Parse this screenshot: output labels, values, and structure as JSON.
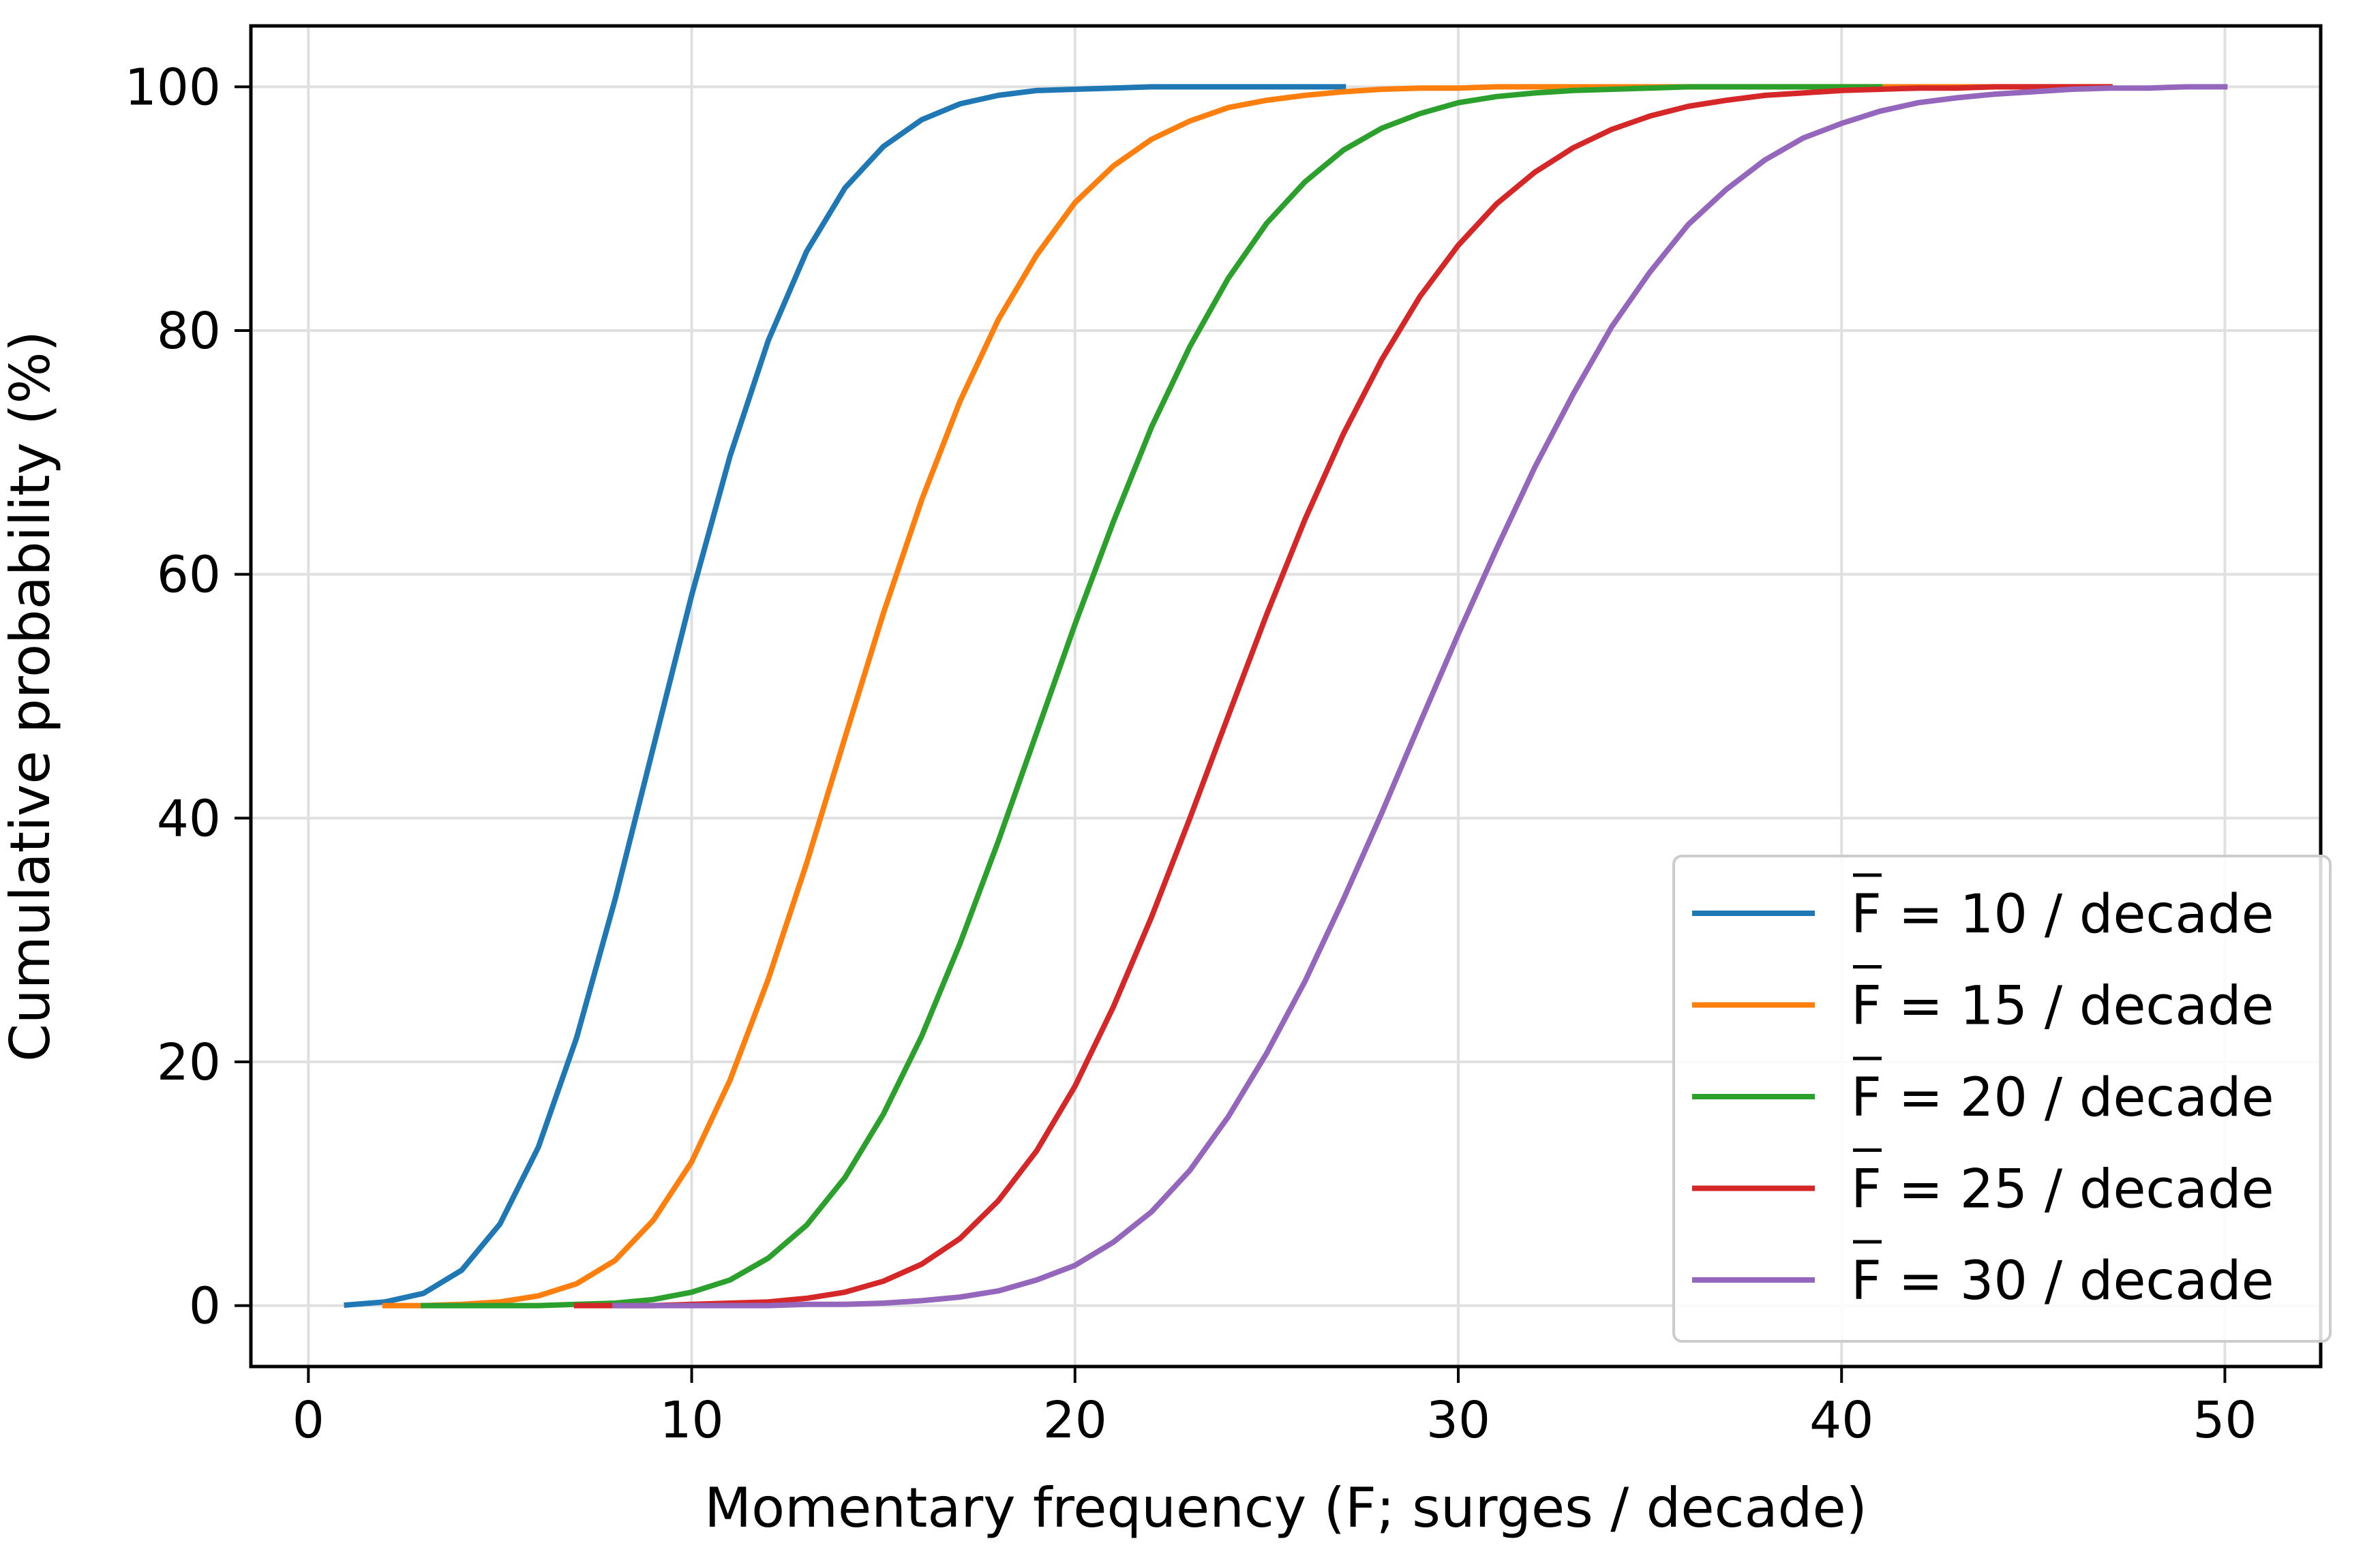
{
  "chart_data": {
    "type": "line",
    "title": "",
    "xlabel": "Momentary frequency (F; surges / decade)",
    "ylabel": "Cumulative probability (%)",
    "xlim": [
      -1.5,
      52.5
    ],
    "ylim": [
      -5,
      105
    ],
    "xticks": [
      0,
      10,
      20,
      30,
      40,
      50
    ],
    "yticks": [
      0,
      20,
      40,
      60,
      80,
      100
    ],
    "grid": true,
    "legend_position": "lower right",
    "series": [
      {
        "name": "F = 10 / decade",
        "color": "#1f77b4",
        "x": [
          1,
          2,
          3,
          4,
          5,
          6,
          7,
          8,
          9,
          10,
          11,
          12,
          13,
          14,
          15,
          16,
          17,
          18,
          19,
          20,
          21,
          22,
          23,
          24,
          25,
          26,
          27
        ],
        "y": [
          0.05,
          0.3,
          1.0,
          2.9,
          6.7,
          13.0,
          22.0,
          33.3,
          45.8,
          58.3,
          69.7,
          79.2,
          86.5,
          91.7,
          95.1,
          97.3,
          98.6,
          99.3,
          99.7,
          99.8,
          99.9,
          100,
          100,
          100,
          100,
          100,
          100
        ]
      },
      {
        "name": "F = 15 / decade",
        "color": "#ff7f0e",
        "x": [
          2,
          3,
          4,
          5,
          6,
          7,
          8,
          9,
          10,
          11,
          12,
          13,
          14,
          15,
          16,
          17,
          18,
          19,
          20,
          21,
          22,
          23,
          24,
          25,
          26,
          27,
          28,
          29,
          30,
          31,
          32,
          33,
          34,
          35,
          36,
          37,
          38,
          39,
          40,
          41,
          42,
          43,
          44,
          45,
          46,
          47
        ],
        "y": [
          0.0,
          0.0,
          0.1,
          0.3,
          0.8,
          1.8,
          3.7,
          7.0,
          11.8,
          18.5,
          26.8,
          36.3,
          46.6,
          56.8,
          66.1,
          74.2,
          80.9,
          86.2,
          90.5,
          93.5,
          95.7,
          97.2,
          98.3,
          98.9,
          99.3,
          99.6,
          99.8,
          99.9,
          99.9,
          100,
          100,
          100,
          100,
          100,
          100,
          100,
          100,
          100,
          100,
          100,
          100,
          100,
          100,
          100,
          100,
          100
        ]
      },
      {
        "name": "F = 20 / decade",
        "color": "#2ca02c",
        "x": [
          3,
          4,
          5,
          6,
          7,
          8,
          9,
          10,
          11,
          12,
          13,
          14,
          15,
          16,
          17,
          18,
          19,
          20,
          21,
          22,
          23,
          24,
          25,
          26,
          27,
          28,
          29,
          30,
          31,
          32,
          33,
          34,
          35,
          36,
          37,
          38,
          39,
          40,
          41
        ],
        "y": [
          0.0,
          0.0,
          0.0,
          0.0,
          0.1,
          0.2,
          0.5,
          1.1,
          2.1,
          3.9,
          6.6,
          10.5,
          15.7,
          22.1,
          29.7,
          38.1,
          47.0,
          55.9,
          64.3,
          72.1,
          78.7,
          84.3,
          88.8,
          92.2,
          94.8,
          96.6,
          97.8,
          98.7,
          99.2,
          99.5,
          99.7,
          99.8,
          99.9,
          100,
          100,
          100,
          100,
          100,
          100
        ]
      },
      {
        "name": "F = 25 / decade",
        "color": "#d62728",
        "x": [
          7,
          8,
          9,
          10,
          11,
          12,
          13,
          14,
          15,
          16,
          17,
          18,
          19,
          20,
          21,
          22,
          23,
          24,
          25,
          26,
          27,
          28,
          29,
          30,
          31,
          32,
          33,
          34,
          35,
          36,
          37,
          38,
          39,
          40,
          41,
          42,
          43,
          44,
          45,
          46,
          47
        ],
        "y": [
          0.0,
          0.0,
          0.0,
          0.1,
          0.2,
          0.3,
          0.6,
          1.1,
          2.0,
          3.4,
          5.5,
          8.6,
          12.7,
          18.0,
          24.5,
          31.9,
          40.0,
          48.4,
          56.7,
          64.5,
          71.5,
          77.6,
          82.8,
          87.0,
          90.4,
          93.0,
          95.0,
          96.5,
          97.6,
          98.4,
          98.9,
          99.3,
          99.5,
          99.7,
          99.8,
          99.9,
          99.9,
          100,
          100,
          100,
          100
        ]
      },
      {
        "name": "F = 30 / decade",
        "color": "#9467bd",
        "x": [
          8,
          9,
          10,
          11,
          12,
          13,
          14,
          15,
          16,
          17,
          18,
          19,
          20,
          21,
          22,
          23,
          24,
          25,
          26,
          27,
          28,
          29,
          30,
          31,
          32,
          33,
          34,
          35,
          36,
          37,
          38,
          39,
          40,
          41,
          42,
          43,
          44,
          45,
          46,
          47,
          48,
          49,
          50
        ],
        "y": [
          0.0,
          0.0,
          0.0,
          0.0,
          0.0,
          0.1,
          0.1,
          0.2,
          0.4,
          0.7,
          1.2,
          2.1,
          3.3,
          5.2,
          7.7,
          11.1,
          15.5,
          20.7,
          26.6,
          33.3,
          40.4,
          47.8,
          55.1,
          62.1,
          68.8,
          74.8,
          80.3,
          84.8,
          88.7,
          91.6,
          94.0,
          95.8,
          97.0,
          98.0,
          98.7,
          99.1,
          99.4,
          99.6,
          99.8,
          99.9,
          99.9,
          100,
          100
        ]
      }
    ]
  }
}
